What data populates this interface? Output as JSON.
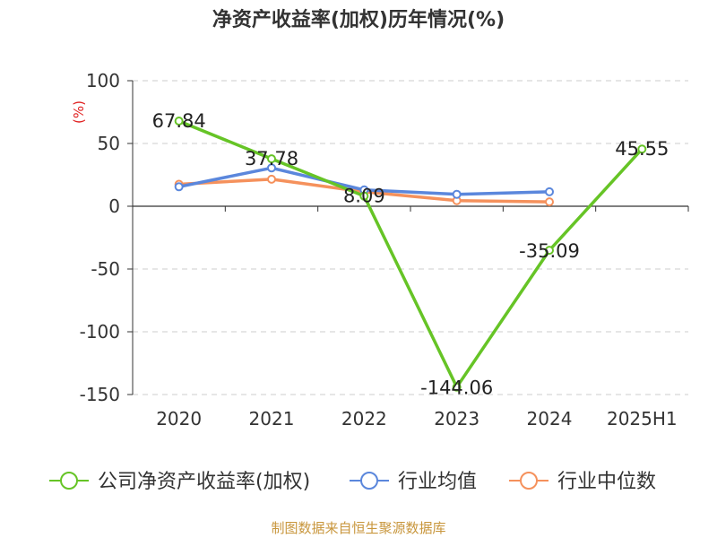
{
  "title": "净资产收益率(加权)历年情况(%)",
  "source": "制图数据来自恒生聚源数据库",
  "chart_data": {
    "type": "line",
    "title": "净资产收益率(加权)历年情况(%)",
    "ylabel": "(%)",
    "ylim": [
      -150,
      100
    ],
    "yticks": [
      100,
      50,
      0,
      -50,
      -100,
      -150
    ],
    "categories": [
      "2020",
      "2021",
      "2022",
      "2023",
      "2024",
      "2025H1"
    ],
    "grid": true,
    "legend_position": "bottom",
    "series": [
      {
        "name": "公司净资产收益率(加权)",
        "color": "#66c426",
        "values": [
          67.84,
          37.78,
          8.09,
          -144.06,
          -35.09,
          45.55
        ],
        "labels": [
          "67.84",
          "37.78",
          "8.09",
          "-144.06",
          "-35.09",
          "45.55"
        ]
      },
      {
        "name": "行业均值",
        "color": "#5b87dc",
        "values": [
          15.5,
          30.5,
          13.0,
          9.5,
          11.5,
          null
        ]
      },
      {
        "name": "行业中位数",
        "color": "#f5915c",
        "values": [
          17.5,
          21.5,
          11.5,
          4.5,
          3.5,
          null
        ]
      }
    ]
  }
}
